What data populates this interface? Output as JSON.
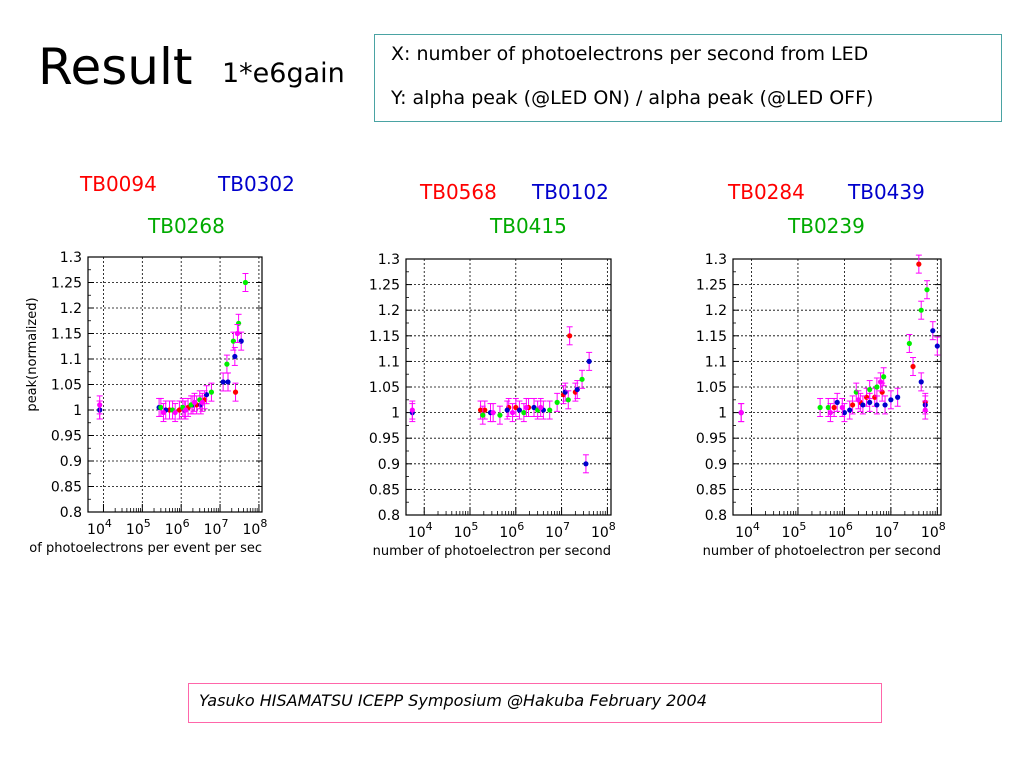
{
  "slide": {
    "title": "Result",
    "subtitle": "1*e6gain",
    "legend_x": "X: number of photoelectrons per second from LED",
    "legend_y": "Y: alpha peak (@LED ON) / alpha peak (@LED OFF)",
    "footer": "Yasuko HISAMATSU ICEPP Symposium @Hakuba  February 2004"
  },
  "tube_labels": {
    "p1": [
      "TB0094",
      "TB0302",
      "TB0268"
    ],
    "p2": [
      "TB0568",
      "TB0102",
      "TB0415"
    ],
    "p3": [
      "TB0284",
      "TB0439",
      "TB0239"
    ]
  },
  "colors": {
    "red": "#ff0000",
    "blue": "#0000cc",
    "green": "#00ee00",
    "magenta": "#ff00ff"
  },
  "chart_data": [
    {
      "type": "scatter",
      "xlabel": "of photoelectrons per event per sec",
      "ylabel": "peak(normalized)",
      "xscale": "log",
      "xlim": [
        4000,
        120000000
      ],
      "ylim": [
        0.8,
        1.3
      ],
      "yticks": [
        "0.8",
        "0.85",
        "0.9",
        "0.95",
        "1",
        "1.05",
        "1.1",
        "1.15",
        "1.2",
        "1.25",
        "1.3"
      ],
      "xticks": [
        {
          "base": "10",
          "exp": "4"
        },
        {
          "base": "10",
          "exp": "5"
        },
        {
          "base": "10",
          "exp": "6"
        },
        {
          "base": "10",
          "exp": "7"
        },
        {
          "base": "10",
          "exp": "8"
        }
      ],
      "grid": true,
      "series": [
        {
          "name": "TB0094",
          "color": "red",
          "points": [
            [
              8000,
              1.0
            ],
            [
              500000,
              1.0
            ],
            [
              900000,
              1.0
            ],
            [
              1500000,
              1.005
            ],
            [
              2500000,
              1.01
            ],
            [
              4000000,
              1.02
            ],
            [
              25000000,
              1.035
            ]
          ]
        },
        {
          "name": "TB0302",
          "color": "blue",
          "points": [
            [
              8000,
              1.0
            ],
            [
              270000,
              1.005
            ],
            [
              400000,
              1.0
            ],
            [
              1200000,
              1.0
            ],
            [
              2000000,
              1.01
            ],
            [
              3200000,
              1.01
            ],
            [
              4500000,
              1.03
            ],
            [
              12000000,
              1.055
            ],
            [
              16000000,
              1.055
            ],
            [
              24000000,
              1.105
            ],
            [
              35000000,
              1.135
            ]
          ]
        },
        {
          "name": "TB0268",
          "color": "green",
          "points": [
            [
              300000,
              1.005
            ],
            [
              600000,
              1.0
            ],
            [
              1100000,
              1.005
            ],
            [
              1800000,
              1.01
            ],
            [
              3000000,
              1.02
            ],
            [
              6000000,
              1.035
            ],
            [
              15000000,
              1.09
            ],
            [
              22000000,
              1.135
            ],
            [
              30000000,
              1.17
            ],
            [
              45000000,
              1.25
            ]
          ]
        },
        {
          "name": "",
          "color": "magenta",
          "points": [
            [
              8000,
              1.01
            ],
            [
              350000,
              0.995
            ],
            [
              700000,
              0.995
            ],
            [
              1300000,
              1.0
            ],
            [
              2200000,
              1.015
            ],
            [
              3500000,
              1.015
            ],
            [
              28000000,
              1.15
            ]
          ]
        }
      ]
    },
    {
      "type": "scatter",
      "xlabel": "number of photoelectron per second",
      "ylabel": "",
      "xscale": "log",
      "xlim": [
        4000,
        120000000
      ],
      "ylim": [
        0.8,
        1.3
      ],
      "yticks": [
        "0.8",
        "0.85",
        "0.9",
        "0.95",
        "1",
        "1.05",
        "1.1",
        "1.15",
        "1.2",
        "1.25",
        "1.3"
      ],
      "xticks": [
        {
          "base": "10",
          "exp": "4"
        },
        {
          "base": "10",
          "exp": "5"
        },
        {
          "base": "10",
          "exp": "6"
        },
        {
          "base": "10",
          "exp": "7"
        },
        {
          "base": "10",
          "exp": "8"
        }
      ],
      "grid": true,
      "series": [
        {
          "name": "TB0568",
          "color": "red",
          "points": [
            [
              170000,
              1.005
            ],
            [
              210000,
              1.005
            ],
            [
              700000,
              1.01
            ],
            [
              1000000,
              1.01
            ],
            [
              1900000,
              1.01
            ],
            [
              11000000,
              1.035
            ],
            [
              15000000,
              1.15
            ],
            [
              20000000,
              1.04
            ]
          ]
        },
        {
          "name": "TB0102",
          "color": "blue",
          "points": [
            [
              5500,
              1.0
            ],
            [
              280000,
              1.0
            ],
            [
              650000,
              1.005
            ],
            [
              1200000,
              1.005
            ],
            [
              2500000,
              1.01
            ],
            [
              4000000,
              1.005
            ],
            [
              12000000,
              1.04
            ],
            [
              22000000,
              1.045
            ],
            [
              34000000,
              0.9
            ],
            [
              40000000,
              1.1
            ]
          ]
        },
        {
          "name": "TB0415",
          "color": "green",
          "points": [
            [
              190000,
              0.995
            ],
            [
              450000,
              0.995
            ],
            [
              1500000,
              1.0
            ],
            [
              3000000,
              1.005
            ],
            [
              5500000,
              1.005
            ],
            [
              8000000,
              1.02
            ],
            [
              14000000,
              1.025
            ],
            [
              28000000,
              1.065
            ]
          ]
        },
        {
          "name": "",
          "color": "magenta",
          "points": [
            [
              5500,
              1.005
            ],
            [
              320000,
              1.0
            ],
            [
              850000,
              1.0
            ],
            [
              1700000,
              1.01
            ],
            [
              3500000,
              1.01
            ]
          ]
        }
      ]
    },
    {
      "type": "scatter",
      "xlabel": "number of photoelectron per second",
      "ylabel": "",
      "xscale": "log",
      "xlim": [
        4000,
        120000000
      ],
      "ylim": [
        0.8,
        1.3
      ],
      "yticks": [
        "0.8",
        "0.85",
        "0.9",
        "0.95",
        "1",
        "1.05",
        "1.1",
        "1.15",
        "1.2",
        "1.25",
        "1.3"
      ],
      "xticks": [
        {
          "base": "10",
          "exp": "4"
        },
        {
          "base": "10",
          "exp": "5"
        },
        {
          "base": "10",
          "exp": "6"
        },
        {
          "base": "10",
          "exp": "7"
        },
        {
          "base": "10",
          "exp": "8"
        }
      ],
      "grid": true,
      "series": [
        {
          "name": "TB0284",
          "color": "red",
          "points": [
            [
              600000,
              1.01
            ],
            [
              1500000,
              1.015
            ],
            [
              2200000,
              1.02
            ],
            [
              3000000,
              1.03
            ],
            [
              4500000,
              1.03
            ],
            [
              6500000,
              1.04
            ],
            [
              30000000,
              1.09
            ],
            [
              40000000,
              1.29
            ],
            [
              55000000,
              1.02
            ]
          ]
        },
        {
          "name": "TB0439",
          "color": "blue",
          "points": [
            [
              6000,
              1.0
            ],
            [
              700000,
              1.02
            ],
            [
              1000000,
              1.0
            ],
            [
              1300000,
              1.005
            ],
            [
              2500000,
              1.015
            ],
            [
              3500000,
              1.02
            ],
            [
              5000000,
              1.015
            ],
            [
              7500000,
              1.015
            ],
            [
              10000000,
              1.025
            ],
            [
              14000000,
              1.03
            ],
            [
              45000000,
              1.06
            ],
            [
              55000000,
              1.015
            ],
            [
              80000000,
              1.16
            ],
            [
              100000000,
              1.13
            ]
          ]
        },
        {
          "name": "TB0239",
          "color": "green",
          "points": [
            [
              300000,
              1.01
            ],
            [
              450000,
              1.01
            ],
            [
              1800000,
              1.04
            ],
            [
              3500000,
              1.045
            ],
            [
              5000000,
              1.05
            ],
            [
              7000000,
              1.07
            ],
            [
              25000000,
              1.135
            ],
            [
              45000000,
              1.2
            ],
            [
              60000000,
              1.24
            ]
          ]
        },
        {
          "name": "",
          "color": "magenta",
          "points": [
            [
              6000,
              1.0
            ],
            [
              500000,
              1.0
            ],
            [
              900000,
              1.01
            ],
            [
              2000000,
              1.025
            ],
            [
              6000000,
              1.06
            ],
            [
              55000000,
              1.005
            ]
          ]
        }
      ]
    }
  ]
}
